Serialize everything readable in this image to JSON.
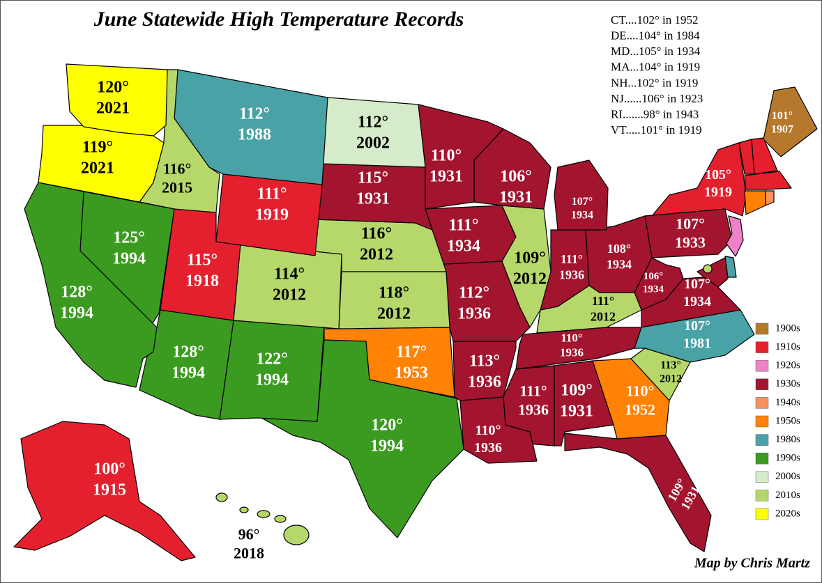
{
  "title": "June Statewide High Temperature Records",
  "credit": "Map by Chris Martz",
  "notes": [
    "CT....102° in 1952",
    "DE....104° in 1984",
    "MD...105° in 1934",
    "MA...104° in  1919",
    "NH...102° in 1919",
    "NJ......106° in 1923",
    "RI.......98° in 1943",
    "VT.....101° in 1919"
  ],
  "legend": [
    {
      "label": "1900s",
      "color": "#b5782d"
    },
    {
      "label": "1910s",
      "color": "#e5202e"
    },
    {
      "label": "1920s",
      "color": "#ee82c8"
    },
    {
      "label": "1930s",
      "color": "#a3142f"
    },
    {
      "label": "1940s",
      "color": "#f7925f"
    },
    {
      "label": "1950s",
      "color": "#ff8205"
    },
    {
      "label": "1980s",
      "color": "#49a2a6"
    },
    {
      "label": "1990s",
      "color": "#3b9b20"
    },
    {
      "label": "2000s",
      "color": "#d5ebc9"
    },
    {
      "label": "2010s",
      "color": "#b6d86b"
    },
    {
      "label": "2020s",
      "color": "#ffff00"
    }
  ],
  "states": [
    {
      "temp": "120°",
      "year": "2021",
      "color": "#ffff00"
    },
    {
      "temp": "119°",
      "year": "2021",
      "color": "#ffff00"
    },
    {
      "temp": "128°",
      "year": "1994",
      "color": "#3b9b20"
    },
    {
      "temp": "125°",
      "year": "1994",
      "color": "#3b9b20"
    },
    {
      "temp": "116°",
      "year": "2015",
      "color": "#b6d86b"
    },
    {
      "temp": "112°",
      "year": "1988",
      "color": "#49a2a6"
    },
    {
      "temp": "111°",
      "year": "1919",
      "color": "#e5202e"
    },
    {
      "temp": "115°",
      "year": "1918",
      "color": "#e5202e"
    },
    {
      "temp": "128°",
      "year": "1994",
      "color": "#3b9b20"
    },
    {
      "temp": "114°",
      "year": "2012",
      "color": "#b6d86b"
    },
    {
      "temp": "122°",
      "year": "1994",
      "color": "#3b9b20"
    },
    {
      "temp": "112°",
      "year": "2002",
      "color": "#d5ebc9"
    },
    {
      "temp": "115°",
      "year": "1931",
      "color": "#a3142f"
    },
    {
      "temp": "116°",
      "year": "2012",
      "color": "#b6d86b"
    },
    {
      "temp": "118°",
      "year": "2012",
      "color": "#b6d86b"
    },
    {
      "temp": "117°",
      "year": "1953",
      "color": "#ff8205"
    },
    {
      "temp": "120°",
      "year": "1994",
      "color": "#3b9b20"
    },
    {
      "temp": "110°",
      "year": "1931",
      "color": "#a3142f"
    },
    {
      "temp": "111°",
      "year": "1934",
      "color": "#a3142f"
    },
    {
      "temp": "112°",
      "year": "1936",
      "color": "#a3142f"
    },
    {
      "temp": "113°",
      "year": "1936",
      "color": "#a3142f"
    },
    {
      "temp": "110°",
      "year": "1936",
      "color": "#a3142f"
    },
    {
      "temp": "106°",
      "year": "1931",
      "color": "#a3142f"
    },
    {
      "temp": "109°",
      "year": "2012",
      "color": "#b6d86b"
    },
    {
      "temp": "107°",
      "year": "1934",
      "color": "#a3142f"
    },
    {
      "temp": "111°",
      "year": "1936",
      "color": "#a3142f"
    },
    {
      "temp": "108°",
      "year": "1934",
      "color": "#a3142f"
    },
    {
      "temp": "111°",
      "year": "2012",
      "color": "#b6d86b"
    },
    {
      "temp": "110°",
      "year": "1936",
      "color": "#a3142f"
    },
    {
      "temp": "111°",
      "year": "1936",
      "color": "#a3142f"
    },
    {
      "temp": "109°",
      "year": "1931",
      "color": "#a3142f"
    },
    {
      "temp": "110°",
      "year": "1952",
      "color": "#ff8205"
    },
    {
      "temp": "109°",
      "year": "1931",
      "color": "#a3142f"
    },
    {
      "temp": "113°",
      "year": "2012",
      "color": "#b6d86b"
    },
    {
      "temp": "107°",
      "year": "1981",
      "color": "#49a2a6"
    },
    {
      "temp": "107°",
      "year": "1934",
      "color": "#a3142f"
    },
    {
      "temp": "106°",
      "year": "1934",
      "color": "#a3142f"
    },
    {
      "temp": "107°",
      "year": "1933",
      "color": "#a3142f"
    },
    {
      "temp": "105°",
      "year": "1919",
      "color": "#e5202e"
    },
    {
      "temp": "101°",
      "year": "1907",
      "color": "#b5782d"
    },
    {
      "temp": "100°",
      "year": "1915",
      "color": "#e5202e"
    },
    {
      "temp": "96°",
      "year": "2018",
      "color": "#b6d86b"
    }
  ]
}
